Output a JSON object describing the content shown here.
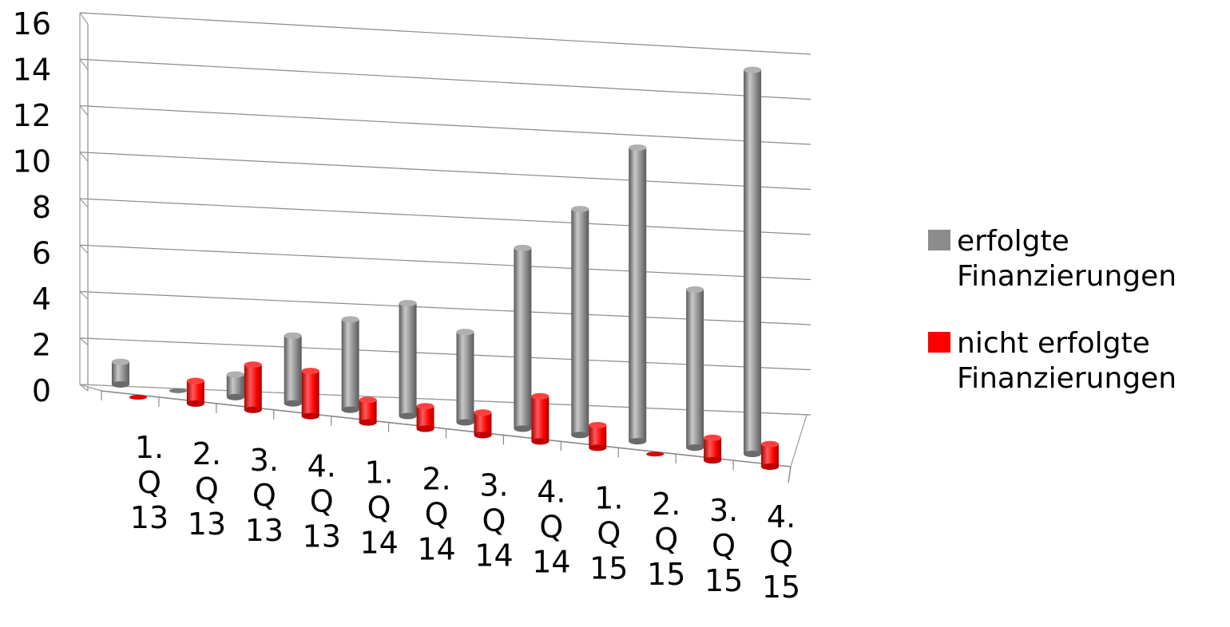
{
  "chart_data": {
    "type": "bar",
    "style": "3d-cylinder",
    "categories": [
      [
        "1.",
        "Q",
        "13"
      ],
      [
        "2.",
        "Q",
        "13"
      ],
      [
        "3.",
        "Q",
        "13"
      ],
      [
        "4.",
        "Q",
        "13"
      ],
      [
        "1.",
        "Q",
        "14"
      ],
      [
        "2.",
        "Q",
        "14"
      ],
      [
        "3.",
        "Q",
        "14"
      ],
      [
        "4.",
        "Q",
        "14"
      ],
      [
        "1.",
        "Q",
        "15"
      ],
      [
        "2.",
        "Q",
        "15"
      ],
      [
        "3.",
        "Q",
        "15"
      ],
      [
        "4.",
        "Q",
        "15"
      ]
    ],
    "series": [
      {
        "name": "erfolgte Finanzierungen",
        "color": "#8c8c8c",
        "values": [
          1,
          0,
          1,
          3,
          4,
          5,
          4,
          8,
          10,
          13,
          7,
          17
        ]
      },
      {
        "name": "nicht erfolgte Finanzierungen",
        "color": "#ff0000",
        "values": [
          0,
          1,
          2,
          2,
          1,
          1,
          1,
          2,
          1,
          0,
          1,
          1
        ]
      }
    ],
    "y_ticks": [
      "0",
      "2",
      "4",
      "6",
      "8",
      "10",
      "12",
      "14",
      "16"
    ],
    "ylim": [
      0,
      16
    ],
    "grid": true,
    "legend_position": "right",
    "legend": [
      {
        "lines": [
          "erfolgte",
          "Finanzierungen"
        ]
      },
      {
        "lines": [
          "nicht erfolgte",
          "Finanzierungen"
        ]
      }
    ]
  }
}
